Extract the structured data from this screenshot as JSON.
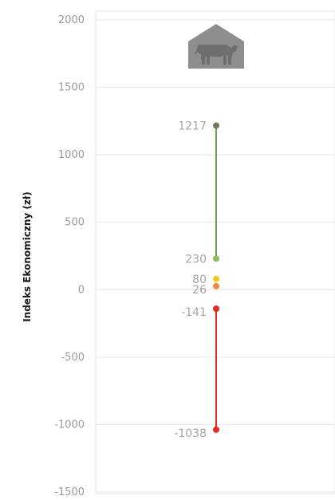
{
  "chart_data": {
    "type": "line",
    "ylabel": "Indeks Ekonomiczny (zł)",
    "ylim": [
      -1500,
      2000
    ],
    "yticks": [
      {
        "value": 2000,
        "label": "2000"
      },
      {
        "value": 1500,
        "label": "1500"
      },
      {
        "value": 1000,
        "label": "1000"
      },
      {
        "value": 500,
        "label": "500"
      },
      {
        "value": 0,
        "label": "0"
      },
      {
        "value": -500,
        "label": "-500"
      },
      {
        "value": -1000,
        "label": "-1000"
      },
      {
        "value": -1500,
        "label": "-1500"
      }
    ],
    "grid": true,
    "icon": "barn-cow-icon",
    "segments": [
      {
        "from": 230,
        "to": 1217,
        "color": "#6e9e4a"
      },
      {
        "from": -1038,
        "to": -141,
        "color": "#e8281e"
      }
    ],
    "points": [
      {
        "value": 1217,
        "label": "1217",
        "color": "#6d7b5a"
      },
      {
        "value": 230,
        "label": "230",
        "color": "#8dbf60"
      },
      {
        "value": 80,
        "label": "80",
        "color": "#f7c51e"
      },
      {
        "value": 26,
        "label": "26",
        "color": "#ef8a3c"
      },
      {
        "value": -141,
        "label": "-141",
        "color": "#e8281e"
      },
      {
        "value": -1038,
        "label": "-1038",
        "color": "#e8281e"
      }
    ]
  }
}
